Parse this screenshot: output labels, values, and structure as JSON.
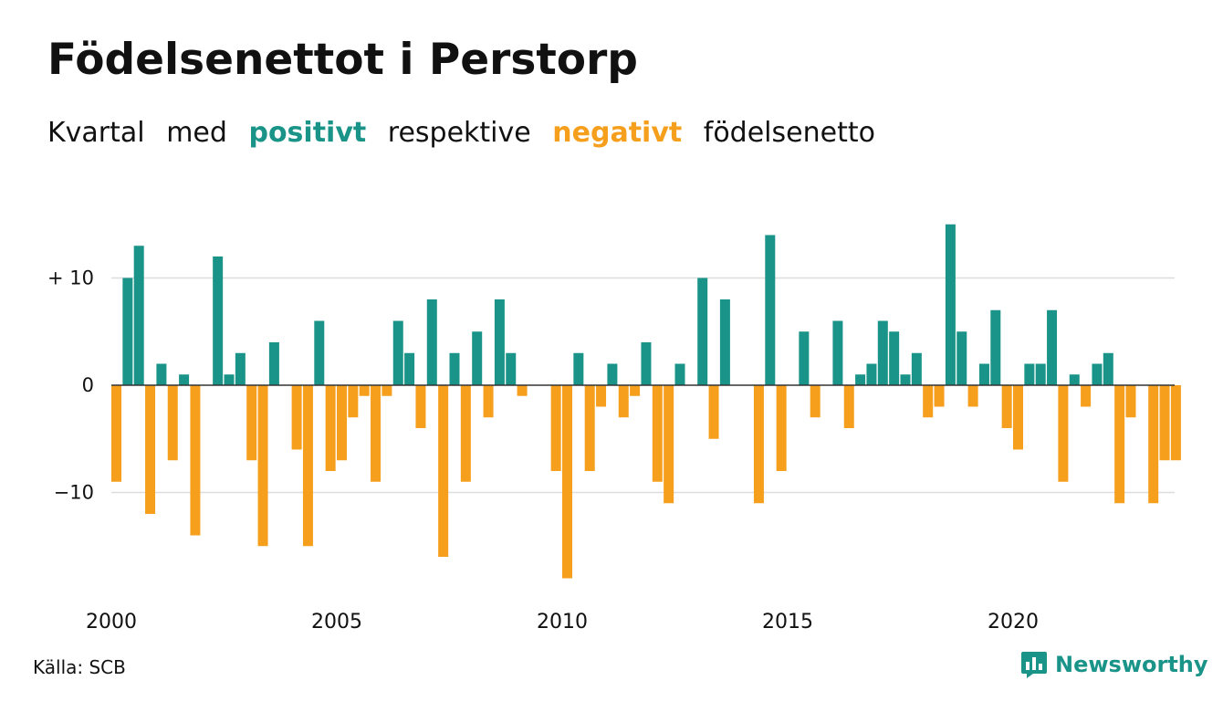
{
  "title": "Födelsenettot i Perstorp",
  "subtitle": {
    "words": [
      "Kvartal",
      "med"
    ],
    "positive": "positivt",
    "middle": "respektive",
    "negative": "negativt",
    "end": "födelsenetto"
  },
  "colors": {
    "positive": "#1a9488",
    "negative": "#f59f1d",
    "grid": "#dddddd",
    "text": "#111111"
  },
  "source": "Källa: SCB",
  "brand": {
    "name": "Newsworthy",
    "icon": "bar-chart-speech-bubble-icon",
    "color": "#1a9488"
  },
  "chart_data": {
    "type": "bar",
    "title": "Födelsenettot i Perstorp",
    "xlabel": "",
    "ylabel": "",
    "start_quarter": "2000K1",
    "end_quarter": "2023K3",
    "ylim": [
      -19,
      16
    ],
    "yticks": [
      {
        "value": 10,
        "label": "+ 10"
      },
      {
        "value": 0,
        "label": "0"
      },
      {
        "value": -10,
        "label": "−10"
      }
    ],
    "xticks": [
      "2000",
      "2005",
      "2010",
      "2015",
      "2020"
    ],
    "grid": true,
    "legend": "none",
    "values": [
      -9,
      10,
      13,
      -12,
      2,
      -7,
      1,
      -14,
      0,
      12,
      1,
      3,
      -7,
      -15,
      4,
      0,
      -6,
      -15,
      6,
      -8,
      -7,
      -3,
      -1,
      -9,
      -1,
      6,
      3,
      -4,
      8,
      -16,
      3,
      -9,
      5,
      -3,
      8,
      3,
      -1,
      0,
      0,
      -8,
      -18,
      3,
      -8,
      -2,
      2,
      -3,
      -1,
      4,
      -9,
      -11,
      2,
      0,
      10,
      -5,
      8,
      0,
      0,
      -11,
      14,
      -8,
      0,
      5,
      -3,
      0,
      6,
      -4,
      1,
      2,
      6,
      5,
      1,
      3,
      -3,
      -2,
      15,
      5,
      -2,
      2,
      7,
      -4,
      -6,
      2,
      2,
      7,
      -9,
      1,
      -2,
      2,
      3,
      -11,
      -3,
      0,
      -11,
      -7,
      -7
    ]
  }
}
